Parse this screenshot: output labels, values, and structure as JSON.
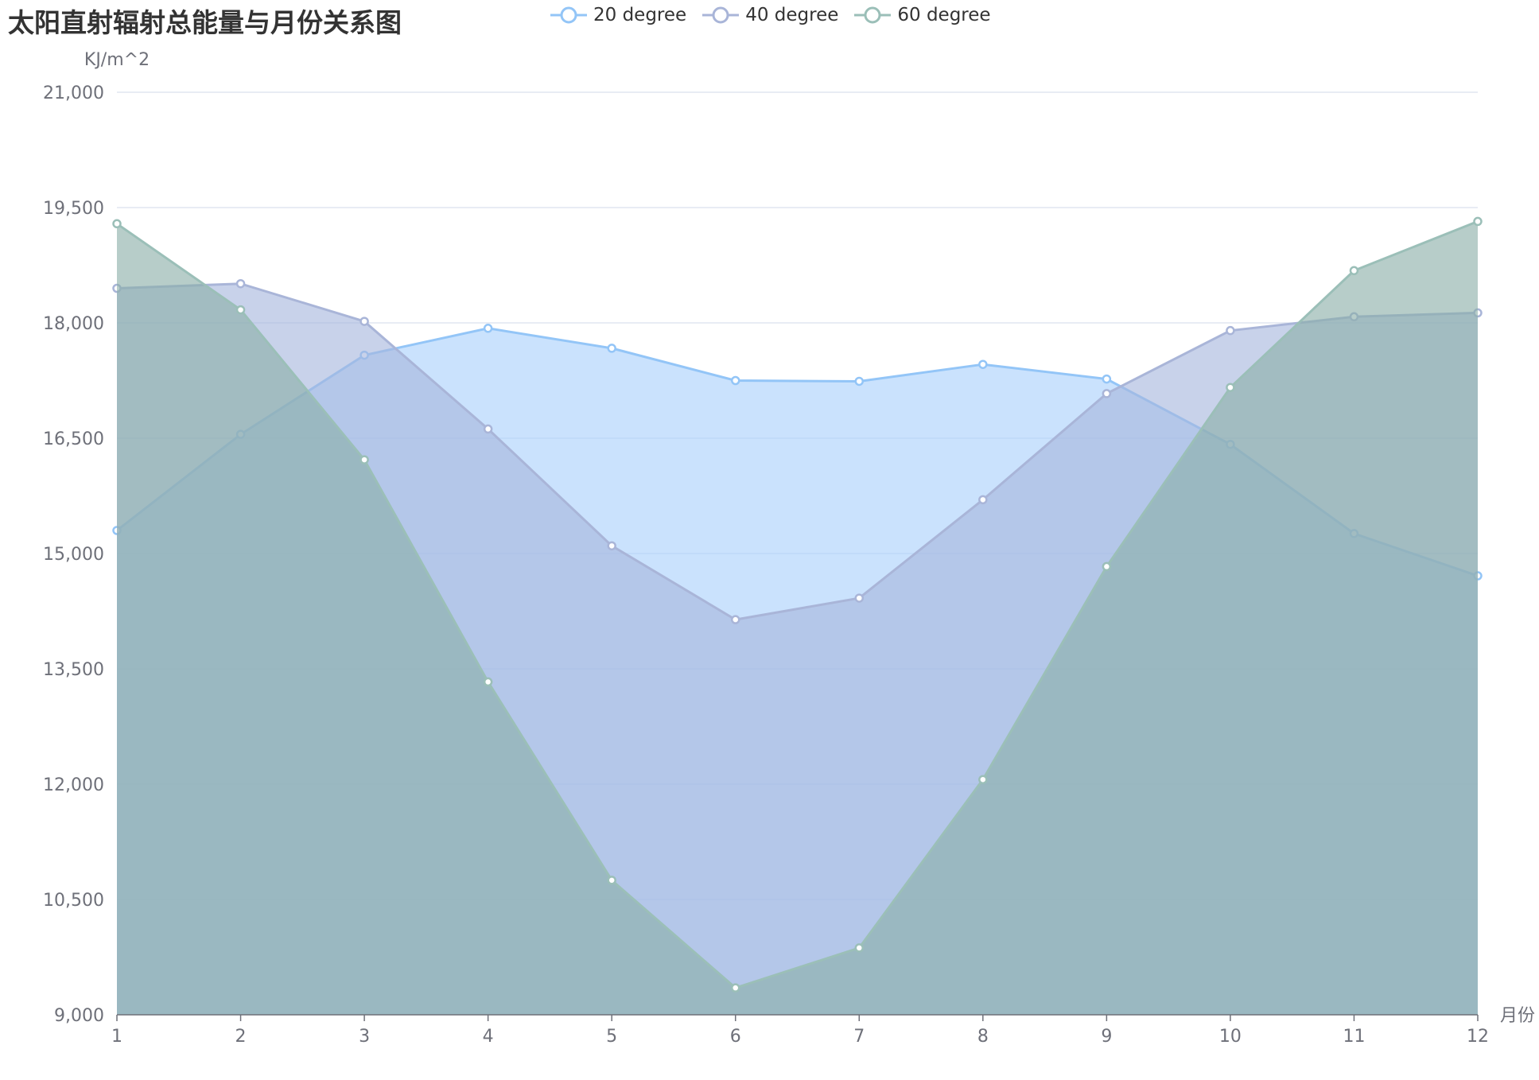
{
  "chart_data": {
    "type": "area",
    "title": "太阳直射辐射总能量与月份关系图",
    "xlabel": "月份",
    "ylabel": "KJ/m^2",
    "categories": [
      "1",
      "2",
      "3",
      "4",
      "5",
      "6",
      "7",
      "8",
      "9",
      "10",
      "11",
      "12"
    ],
    "ylim": [
      9000,
      21000
    ],
    "yticks": [
      9000,
      10500,
      12000,
      13500,
      15000,
      16500,
      18000,
      19500,
      21000
    ],
    "ytick_labels": [
      "9,000",
      "10,500",
      "12,000",
      "13,500",
      "15,000",
      "16,500",
      "18,000",
      "19,500",
      "21,000"
    ],
    "grid": true,
    "legend_position": "top-center",
    "series": [
      {
        "name": "20 degree",
        "color": "#93c5f7",
        "fill": "#a9d0fb",
        "values": [
          15300,
          16550,
          17580,
          17930,
          17670,
          17250,
          17240,
          17460,
          17270,
          16420,
          15260,
          14710
        ]
      },
      {
        "name": "40 degree",
        "color": "#a9b5d8",
        "fill": "#a7b6dd",
        "values": [
          18450,
          18510,
          18020,
          16620,
          15100,
          14140,
          14420,
          15700,
          17080,
          17900,
          18080,
          18130
        ]
      },
      {
        "name": "60 degree",
        "color": "#9bbfb8",
        "fill": "#8aafa8",
        "values": [
          19290,
          18170,
          16220,
          13330,
          10750,
          9350,
          9870,
          12060,
          14830,
          17160,
          18680,
          19320
        ]
      }
    ]
  }
}
